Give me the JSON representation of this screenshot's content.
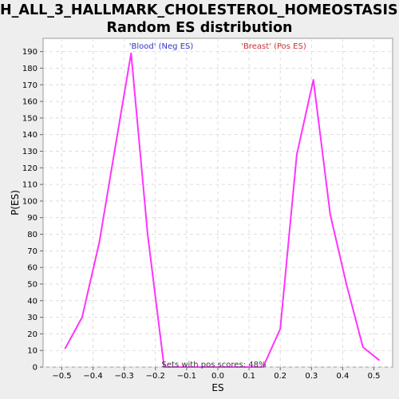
{
  "chart_data": {
    "type": "line",
    "title": [
      "H_ALL_3_HALLMARK_CHOLESTEROL_HOMEOSTASIS:",
      "Random ES distribution"
    ],
    "xlabel": "ES",
    "ylabel": "P(ES)",
    "xlim": [
      -0.56,
      0.56
    ],
    "ylim": [
      0,
      198
    ],
    "xticks": [
      -0.5,
      -0.4,
      -0.3,
      -0.2,
      -0.1,
      0.0,
      0.1,
      0.2,
      0.3,
      0.4,
      0.5
    ],
    "xtick_labels": [
      "−0.5",
      "−0.4",
      "−0.3",
      "−0.2",
      "−0.1",
      "0.0",
      "0.1",
      "0.2",
      "0.3",
      "0.4",
      "0.5"
    ],
    "yticks": [
      0,
      10,
      20,
      30,
      40,
      50,
      60,
      70,
      80,
      90,
      100,
      110,
      120,
      130,
      140,
      150,
      160,
      170,
      180,
      190
    ],
    "grid": true,
    "line_color": "#ff33ff",
    "legend": [
      {
        "label": "'Blood' (Neg ES)",
        "color": "#3333cc"
      },
      {
        "label": "'Breast' (Pos ES)",
        "color": "#cc3333"
      }
    ],
    "annotation": "Sets with pos scores: 48%",
    "series": [
      {
        "name": "Random ES distribution",
        "x": [
          -0.49,
          -0.435,
          -0.38,
          -0.33,
          -0.278,
          -0.225,
          -0.172,
          -0.12,
          -0.068,
          -0.015,
          0.038,
          0.09,
          0.145,
          0.2,
          0.253,
          0.306,
          0.36,
          0.412,
          0.465,
          0.518
        ],
        "y": [
          11,
          30,
          75,
          131,
          189,
          80,
          0,
          0,
          0,
          0,
          0,
          0,
          0,
          23,
          128,
          173,
          92,
          50,
          12,
          4
        ]
      }
    ]
  }
}
